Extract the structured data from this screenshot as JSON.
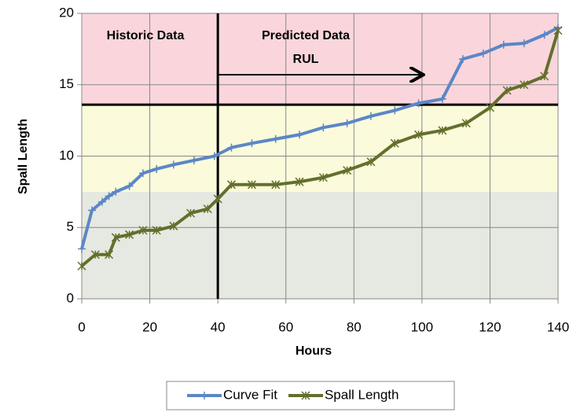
{
  "chart_data": {
    "type": "line",
    "x_label": "Hours",
    "y_label": "Spall Length",
    "xlim": [
      0,
      140
    ],
    "xticks": [
      0,
      20,
      40,
      60,
      80,
      100,
      120,
      140
    ],
    "ylim": [
      0,
      20
    ],
    "yticks": [
      0,
      5,
      10,
      15,
      20
    ],
    "grid": true,
    "bands": [
      {
        "from": 0,
        "to": 7.5,
        "color": "#e6e9e1"
      },
      {
        "from": 7.5,
        "to": 13.6,
        "color": "#fbfbdc"
      },
      {
        "from": 13.6,
        "to": 20,
        "color": "#fad6dc"
      }
    ],
    "vline": 40,
    "hline": 13.6,
    "arrow": {
      "from": 40,
      "to": 100,
      "y": 15.7
    },
    "annotations": [
      "Historic Data",
      "Predicted Data",
      "RUL"
    ],
    "legend": "bottom",
    "series": [
      {
        "name": "Curve Fit",
        "color": "#5b87c6",
        "marker": "plus",
        "x": [
          0,
          3,
          6,
          8,
          10,
          14,
          18,
          22,
          27,
          33,
          39,
          44,
          50,
          57,
          64,
          71,
          78,
          85,
          92,
          99,
          106,
          112,
          118,
          124,
          130,
          136,
          140
        ],
        "values": [
          3.5,
          6.2,
          6.8,
          7.2,
          7.5,
          7.9,
          8.8,
          9.1,
          9.4,
          9.7,
          10.0,
          10.6,
          10.9,
          11.2,
          11.5,
          12.0,
          12.3,
          12.8,
          13.2,
          13.7,
          14.0,
          16.8,
          17.2,
          17.8,
          17.9,
          18.5,
          19.0
        ]
      },
      {
        "name": "Spall Length",
        "color": "#636f2c",
        "marker": "star",
        "x": [
          0,
          4,
          8,
          10,
          14,
          18,
          22,
          27,
          32,
          37,
          40,
          44,
          50,
          57,
          64,
          71,
          78,
          85,
          92,
          99,
          106,
          113,
          120,
          125,
          130,
          136,
          140
        ],
        "values": [
          2.3,
          3.1,
          3.1,
          4.3,
          4.5,
          4.8,
          4.8,
          5.1,
          6.0,
          6.3,
          7.0,
          8.0,
          8.0,
          8.0,
          8.2,
          8.5,
          9.0,
          9.6,
          10.9,
          11.5,
          11.8,
          12.3,
          13.4,
          14.6,
          15.0,
          15.6,
          18.8
        ]
      }
    ]
  }
}
